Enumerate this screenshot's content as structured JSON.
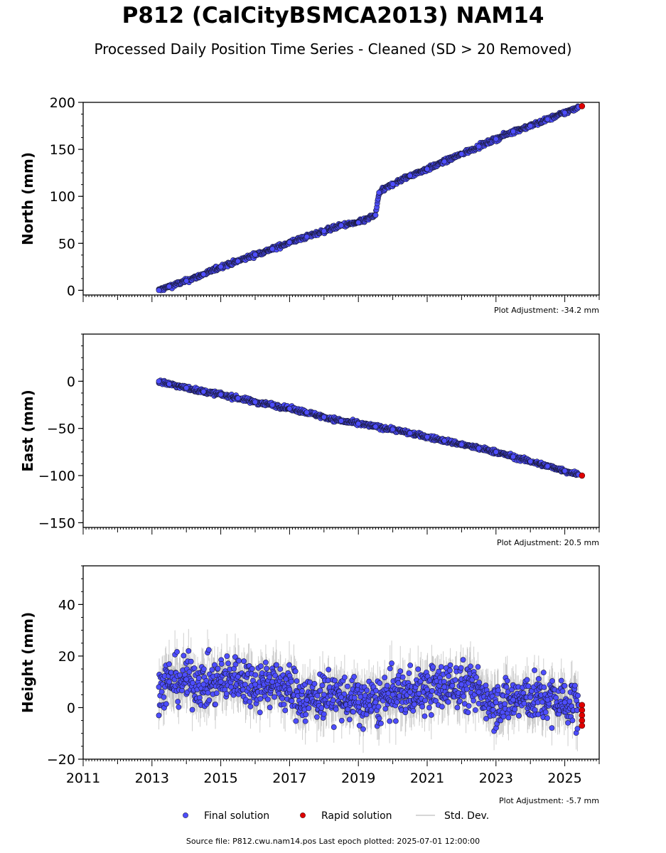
{
  "title": "P812 (CalCityBSMCA2013) NAM14",
  "subtitle": "Processed Daily Position Time Series - Cleaned (SD > 20 Removed)",
  "footer": "Source file: P812.cwu.nam14.pos  Last epoch plotted: 2025-07-01 12:00:00",
  "legend": [
    {
      "label": "Final solution",
      "color": "#4d4dff"
    },
    {
      "label": "Rapid solution",
      "color": "#e00000"
    },
    {
      "label": "Std. Dev.",
      "color": "#c8c8c8"
    }
  ],
  "colors": {
    "final": "#4d4dff",
    "rapid": "#e00000",
    "stddev": "#a8a8a8",
    "edge": "#1a1a3a"
  },
  "chart_data": [
    {
      "type": "scatter",
      "ylabel": "North (mm)",
      "adjustment": "Plot Adjustment: -34.2 mm",
      "xlim": [
        2011,
        2026
      ],
      "ylim": [
        -5,
        200
      ],
      "yticks": [
        0,
        50,
        100,
        150,
        200
      ],
      "ytick_labels": [
        "0",
        "50",
        "100",
        "150",
        "200"
      ],
      "series": [
        {
          "name": "Final solution",
          "x": [
            2013.2,
            2013.5,
            2014.0,
            2014.5,
            2015.0,
            2015.5,
            2016.0,
            2016.5,
            2017.0,
            2017.5,
            2018.0,
            2018.5,
            2019.0,
            2019.5,
            2019.6,
            2020.0,
            2020.5,
            2021.0,
            2021.5,
            2022.0,
            2022.5,
            2023.0,
            2023.5,
            2024.0,
            2024.5,
            2025.0,
            2025.4
          ],
          "y": [
            0,
            4,
            10,
            17,
            25,
            31,
            38,
            44,
            51,
            57,
            63,
            69,
            72,
            80,
            104,
            113,
            122,
            129,
            137,
            145,
            153,
            161,
            169,
            175,
            182,
            189,
            195
          ]
        },
        {
          "name": "Rapid solution",
          "x": [
            2025.5
          ],
          "y": [
            196
          ]
        }
      ]
    },
    {
      "type": "scatter",
      "ylabel": "East (mm)",
      "adjustment": "Plot Adjustment: 20.5 mm",
      "xlim": [
        2011,
        2026
      ],
      "ylim": [
        -155,
        50
      ],
      "yticks": [
        0,
        -50,
        -100,
        -150
      ],
      "ytick_labels": [
        "0",
        "−50",
        "−100",
        "−150"
      ],
      "series": [
        {
          "name": "Final solution",
          "x": [
            2013.2,
            2013.5,
            2014.0,
            2014.5,
            2015.0,
            2015.5,
            2016.0,
            2016.5,
            2017.0,
            2017.5,
            2018.0,
            2018.5,
            2019.0,
            2019.5,
            2020.0,
            2020.5,
            2021.0,
            2021.5,
            2022.0,
            2022.5,
            2023.0,
            2023.5,
            2024.0,
            2024.5,
            2025.0,
            2025.4
          ],
          "y": [
            0,
            -3,
            -7,
            -11,
            -14,
            -18,
            -22,
            -25,
            -29,
            -33,
            -38,
            -42,
            -45,
            -48,
            -51,
            -55,
            -59,
            -63,
            -67,
            -71,
            -75,
            -80,
            -85,
            -90,
            -95,
            -99
          ]
        },
        {
          "name": "Rapid solution",
          "x": [
            2025.5
          ],
          "y": [
            -100
          ]
        }
      ]
    },
    {
      "type": "scatter",
      "ylabel": "Height (mm)",
      "adjustment": "Plot Adjustment: -5.7 mm",
      "xlim": [
        2011,
        2026
      ],
      "ylim": [
        -20,
        55
      ],
      "yticks": [
        -20,
        0,
        20,
        40
      ],
      "ytick_labels": [
        "−20",
        "0",
        "20",
        "40"
      ],
      "xticks": [
        2011,
        2013,
        2015,
        2017,
        2019,
        2021,
        2023,
        2025
      ],
      "xtick_labels": [
        "2011",
        "2013",
        "2015",
        "2017",
        "2019",
        "2021",
        "2023",
        "2025"
      ],
      "series": [
        {
          "name": "Final solution",
          "x": [
            2013.2,
            2013.5,
            2014.0,
            2014.5,
            2015.0,
            2015.5,
            2016.0,
            2016.5,
            2017.0,
            2017.5,
            2018.0,
            2018.5,
            2019.0,
            2019.5,
            2020.0,
            2020.5,
            2021.0,
            2021.5,
            2022.0,
            2022.5,
            2023.0,
            2023.5,
            2024.0,
            2024.5,
            2025.0,
            2025.4
          ],
          "y": [
            8,
            10,
            11,
            9,
            10,
            12,
            9,
            10,
            7,
            3,
            5,
            4,
            2,
            2,
            5,
            6,
            7,
            8,
            9,
            6,
            2,
            3,
            4,
            3,
            2,
            1
          ]
        },
        {
          "name": "Rapid solution",
          "x": [
            2025.5,
            2025.5,
            2025.5,
            2025.5,
            2025.5
          ],
          "y": [
            1,
            -1,
            -3,
            -5,
            -7
          ]
        }
      ]
    }
  ]
}
